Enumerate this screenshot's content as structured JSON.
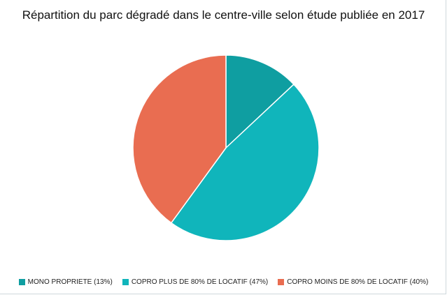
{
  "chart_data": {
    "type": "pie",
    "title": "Répartition du parc dégradé dans le centre-ville selon étude publiée en 2017",
    "slices": [
      {
        "label": "MONO PROPRIETE (13%)",
        "value": 13,
        "color": "#0f9ea1"
      },
      {
        "label": "COPRO PLUS DE 80% DE LOCATIF (47%)",
        "value": 47,
        "color": "#10b5bb"
      },
      {
        "label": "COPRO MOINS DE 80% DE LOCATIF (40%)",
        "value": 40,
        "color": "#e96d51"
      }
    ],
    "legend_position": "bottom"
  }
}
